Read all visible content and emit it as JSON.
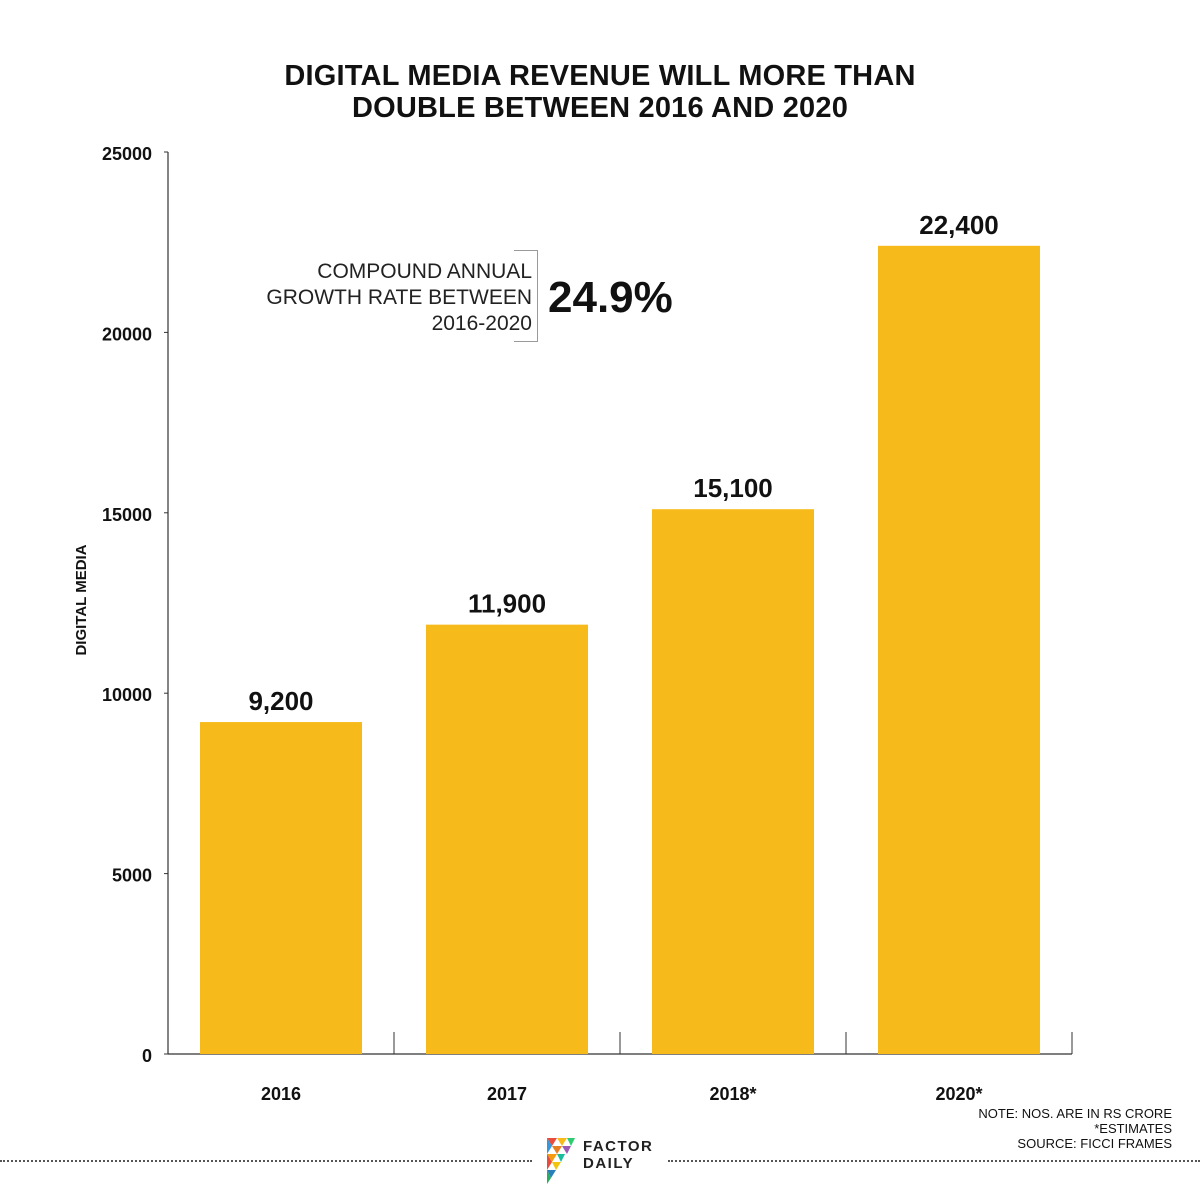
{
  "title": {
    "line1": "DIGITAL MEDIA REVENUE WILL MORE THAN",
    "line2": "DOUBLE BETWEEN 2016 AND 2020"
  },
  "annotation": {
    "label_line1": "COMPOUND ANNUAL",
    "label_line2": "GROWTH RATE BETWEEN",
    "label_line3": "2016-2020",
    "value": "24.9%"
  },
  "notes": {
    "line1": "NOTE: NOS. ARE IN RS CRORE",
    "line2": "*ESTIMATES",
    "line3": "SOURCE: FICCI FRAMES"
  },
  "logo": {
    "line1": "FACTOR",
    "line2": "DAILY"
  },
  "colors": {
    "bar": "#F6BB1A",
    "axis": "#333333",
    "text": "#111111"
  },
  "chart_data": {
    "type": "bar",
    "title": "DIGITAL MEDIA REVENUE WILL MORE THAN DOUBLE BETWEEN 2016 AND 2020",
    "xlabel": "",
    "ylabel": "DIGITAL MEDIA",
    "categories": [
      "2016",
      "2017",
      "2018*",
      "2020*"
    ],
    "values": [
      9200,
      11900,
      15100,
      22400
    ],
    "value_labels": [
      "9,200",
      "11,900",
      "15,100",
      "22,400"
    ],
    "ylim": [
      0,
      25000
    ],
    "yticks": [
      0,
      5000,
      10000,
      15000,
      20000,
      25000
    ],
    "ytick_labels": [
      "0",
      "5000",
      "10000",
      "15000",
      "20000",
      "25000"
    ],
    "grid": false,
    "legend": "none"
  }
}
